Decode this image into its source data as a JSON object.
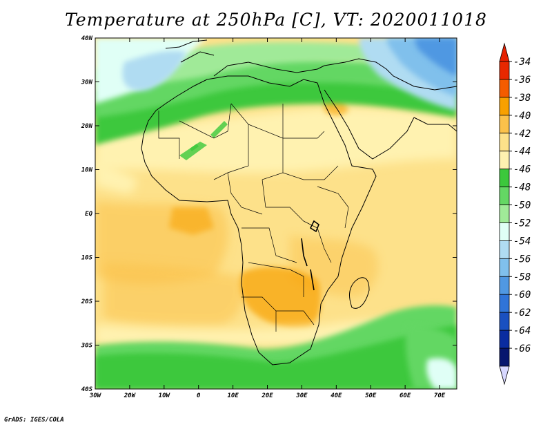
{
  "title": "Temperature at 250hPa [C], VT: 2020011018",
  "credit": "GrADS: IGES/COLA",
  "map": {
    "lon_labels": [
      "30W",
      "20W",
      "10W",
      "0",
      "10E",
      "20E",
      "30E",
      "40E",
      "50E",
      "60E",
      "70E"
    ],
    "lat_labels": [
      "40N",
      "30N",
      "20N",
      "10N",
      "EQ",
      "10S",
      "20S",
      "30S",
      "40S"
    ]
  },
  "colorbar": {
    "levels": [
      "-34",
      "-36",
      "-38",
      "-40",
      "-42",
      "-44",
      "-46",
      "-48",
      "-50",
      "-52",
      "-54",
      "-56",
      "-58",
      "-60",
      "-62",
      "-64",
      "-66"
    ],
    "colors": [
      "#e82800",
      "#f45c00",
      "#f8a000",
      "#fbc14a",
      "#fde18a",
      "#fff2b0",
      "#3cc83c",
      "#64d764",
      "#a0ea98",
      "#e0fff6",
      "#b0dcf2",
      "#80c0ec",
      "#5098e2",
      "#3074d8",
      "#1a50c0",
      "#0a2ca0",
      "#07166e"
    ],
    "top_arrow_color": "#e62000",
    "bottom_arrow_color": "#d8d8ff"
  }
}
